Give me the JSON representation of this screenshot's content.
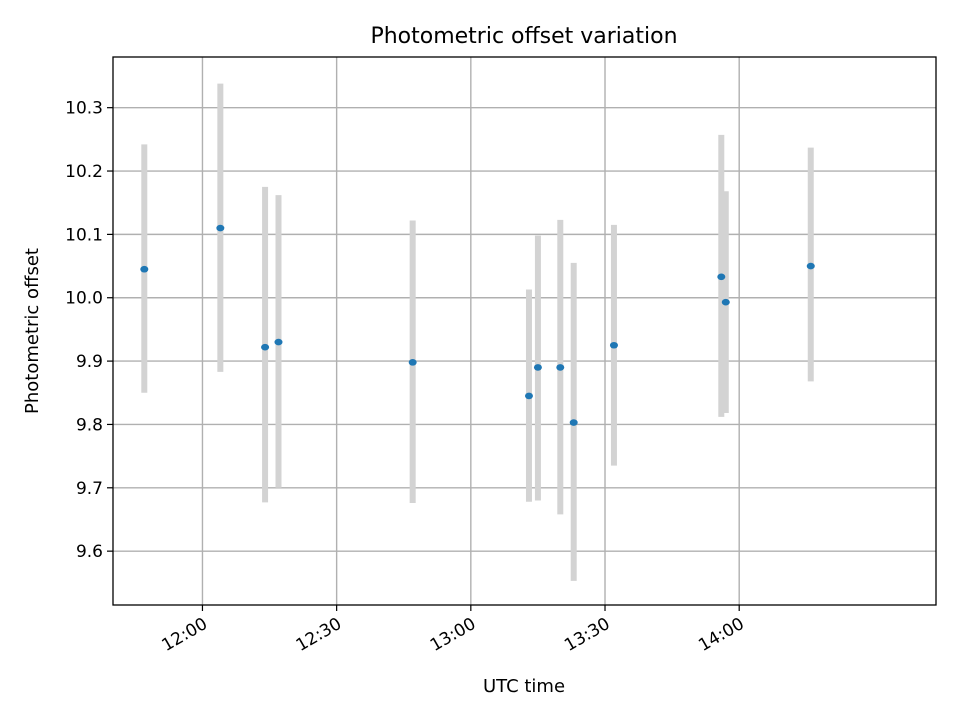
{
  "chart_data": {
    "type": "scatter",
    "title": "Photometric offset variation",
    "xlabel": "UTC time",
    "ylabel": "Photometric offset",
    "grid": true,
    "x_unit": "time of day (HH:MM)",
    "xlim": [
      "11:40",
      "14:44"
    ],
    "ylim": [
      9.515,
      10.38
    ],
    "xticks": [
      "12:00",
      "12:30",
      "13:00",
      "13:30",
      "14:00"
    ],
    "yticks": [
      9.6,
      9.7,
      9.8,
      9.9,
      10.0,
      10.1,
      10.2,
      10.3
    ],
    "ytick_labels": [
      "9.6",
      "9.7",
      "9.8",
      "9.9",
      "10.0",
      "10.1",
      "10.2",
      "10.3"
    ],
    "colors": {
      "marker": "#1f77b4",
      "errorbar": "#d3d3d3"
    },
    "series": [
      {
        "points": [
          {
            "x": "11:47",
            "y": 10.045,
            "low": 9.85,
            "high": 10.242
          },
          {
            "x": "12:04",
            "y": 10.11,
            "low": 9.883,
            "high": 10.338
          },
          {
            "x": "12:14",
            "y": 9.922,
            "low": 9.677,
            "high": 10.175
          },
          {
            "x": "12:17",
            "y": 9.93,
            "low": 9.7,
            "high": 10.162
          },
          {
            "x": "12:47",
            "y": 9.898,
            "low": 9.676,
            "high": 10.122
          },
          {
            "x": "13:13",
            "y": 9.845,
            "low": 9.678,
            "high": 10.013
          },
          {
            "x": "13:15",
            "y": 9.89,
            "low": 9.68,
            "high": 10.098
          },
          {
            "x": "13:20",
            "y": 9.89,
            "low": 9.658,
            "high": 10.123
          },
          {
            "x": "13:23",
            "y": 9.803,
            "low": 9.553,
            "high": 10.055
          },
          {
            "x": "13:32",
            "y": 9.925,
            "low": 9.735,
            "high": 10.115
          },
          {
            "x": "13:56",
            "y": 10.033,
            "low": 9.812,
            "high": 10.257
          },
          {
            "x": "13:57",
            "y": 9.993,
            "low": 9.818,
            "high": 10.168
          },
          {
            "x": "14:16",
            "y": 10.05,
            "low": 9.868,
            "high": 10.237
          }
        ]
      }
    ]
  }
}
